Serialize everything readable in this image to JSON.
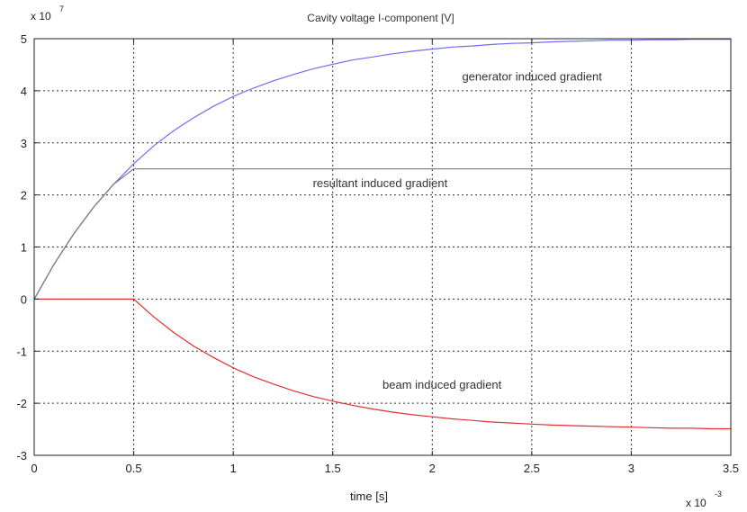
{
  "chart_data": {
    "type": "line",
    "title": "Cavity voltage I-component [V]",
    "xlabel": "time [s]",
    "ylabel": "",
    "x_multiplier": {
      "base": "x 10",
      "exponent": "-3"
    },
    "y_multiplier": {
      "base": "x 10",
      "exponent": "7"
    },
    "xlim": [
      0,
      3.5
    ],
    "ylim": [
      -3,
      5
    ],
    "xticks": [
      0,
      0.5,
      1,
      1.5,
      2,
      2.5,
      3,
      3.5
    ],
    "xtick_labels": [
      "0",
      "0.5",
      "1",
      "1.5",
      "2",
      "2.5",
      "3",
      "3.5"
    ],
    "yticks": [
      -3,
      -2,
      -1,
      0,
      1,
      2,
      3,
      4,
      5
    ],
    "ytick_labels": [
      "-3",
      "-2",
      "-1",
      "0",
      "1",
      "2",
      "3",
      "4",
      "5"
    ],
    "grid": true,
    "annotations": [
      {
        "text": "generator  induced gradient",
        "x": 2.15,
        "y": 4.2
      },
      {
        "text": "resultant induced gradient",
        "x": 1.4,
        "y": 2.15
      },
      {
        "text": "beam induced gradient",
        "x": 1.75,
        "y": -1.72
      }
    ],
    "series": [
      {
        "color": "#6e6ef0",
        "x": [
          0,
          0.1,
          0.2,
          0.3,
          0.4,
          0.5,
          0.6,
          0.7,
          0.8,
          0.9,
          1.0,
          1.1,
          1.2,
          1.3,
          1.4,
          1.5,
          1.6,
          1.7,
          1.8,
          1.9,
          2.0,
          2.1,
          2.2,
          2.3,
          2.4,
          2.5,
          2.6,
          2.7,
          2.8,
          2.9,
          3.0,
          3.1,
          3.2,
          3.3,
          3.4,
          3.5
        ],
        "values": [
          0,
          0.67,
          1.26,
          1.77,
          2.21,
          2.6,
          2.94,
          3.23,
          3.48,
          3.7,
          3.89,
          4.05,
          4.19,
          4.31,
          4.42,
          4.51,
          4.59,
          4.65,
          4.71,
          4.76,
          4.8,
          4.84,
          4.86,
          4.89,
          4.91,
          4.92,
          4.94,
          4.95,
          4.96,
          4.97,
          4.97,
          4.98,
          4.98,
          4.99,
          4.99,
          4.99
        ]
      },
      {
        "color": "#7a7a7a",
        "x": [
          0,
          0.1,
          0.2,
          0.3,
          0.4,
          0.5,
          3.5
        ],
        "values": [
          0,
          0.67,
          1.26,
          1.77,
          2.21,
          2.5,
          2.5
        ]
      },
      {
        "color": "#e03030",
        "x": [
          0,
          0.5,
          0.6,
          0.7,
          0.8,
          0.9,
          1.0,
          1.1,
          1.2,
          1.3,
          1.4,
          1.5,
          1.6,
          1.7,
          1.8,
          1.9,
          2.0,
          2.1,
          2.2,
          2.3,
          2.4,
          2.5,
          2.6,
          2.7,
          2.8,
          2.9,
          3.0,
          3.1,
          3.2,
          3.3,
          3.4,
          3.5
        ],
        "values": [
          0,
          0,
          -0.34,
          -0.64,
          -0.9,
          -1.12,
          -1.32,
          -1.49,
          -1.63,
          -1.76,
          -1.87,
          -1.96,
          -2.04,
          -2.11,
          -2.17,
          -2.22,
          -2.26,
          -2.3,
          -2.33,
          -2.36,
          -2.38,
          -2.4,
          -2.42,
          -2.43,
          -2.44,
          -2.45,
          -2.46,
          -2.47,
          -2.48,
          -2.48,
          -2.49,
          -2.49
        ]
      }
    ]
  }
}
